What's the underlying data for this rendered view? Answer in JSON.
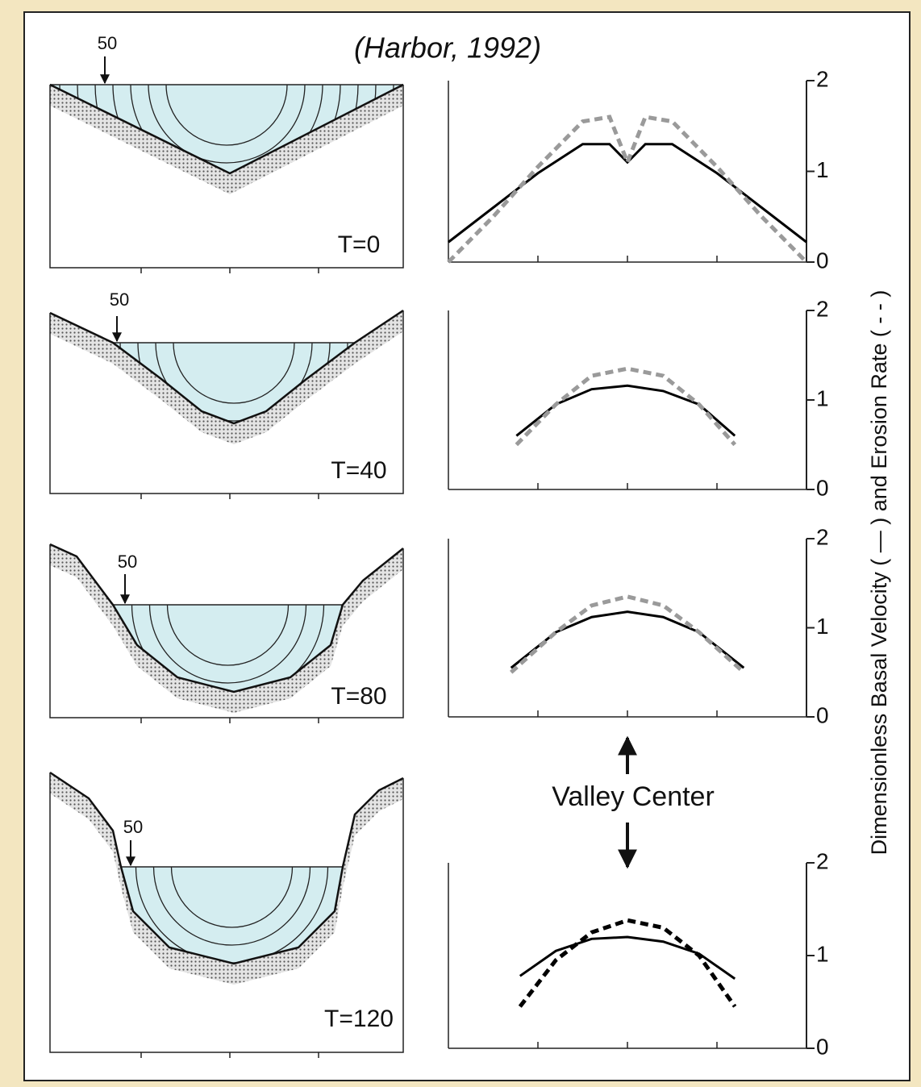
{
  "title": "(Harbor, 1992)",
  "y_axis_label": "Dimensionless Basal Velocity ( — ) and Erosion Rate ( - - )",
  "annotation": "Valley Center",
  "cross_sections": [
    {
      "label": "T=0",
      "marker": "50"
    },
    {
      "label": "T=40",
      "marker": "50"
    },
    {
      "label": "T=80",
      "marker": "50"
    },
    {
      "label": "T=120",
      "marker": "50"
    }
  ],
  "chart_data": [
    {
      "type": "line",
      "x": [
        -1,
        -0.75,
        -0.5,
        -0.25,
        -0.1,
        0,
        0.1,
        0.25,
        0.5,
        0.75,
        1
      ],
      "series": [
        {
          "color": "#000000",
          "style": "solid",
          "values": [
            0.22,
            0.6,
            0.98,
            1.3,
            1.3,
            1.1,
            1.3,
            1.3,
            0.98,
            0.6,
            0.22
          ]
        },
        {
          "color": "#9a9a9a",
          "style": "dashed",
          "values": [
            0.0,
            0.5,
            1.05,
            1.55,
            1.6,
            1.1,
            1.6,
            1.55,
            1.05,
            0.5,
            0.0
          ]
        }
      ],
      "xlim": [
        -1,
        1
      ],
      "xticks": [
        -0.5,
        0,
        0.5
      ],
      "ylim": [
        0,
        2
      ],
      "yticks": [
        0,
        1,
        2
      ]
    },
    {
      "type": "line",
      "x": [
        -0.62,
        -0.4,
        -0.2,
        0,
        0.2,
        0.4,
        0.6
      ],
      "series": [
        {
          "color": "#000000",
          "style": "solid",
          "values": [
            0.6,
            0.95,
            1.12,
            1.16,
            1.1,
            0.95,
            0.6
          ]
        },
        {
          "color": "#9a9a9a",
          "style": "dashed",
          "values": [
            0.5,
            0.95,
            1.27,
            1.35,
            1.27,
            0.95,
            0.5
          ]
        }
      ],
      "xlim": [
        -1,
        1
      ],
      "xticks": [
        -0.5,
        0,
        0.5
      ],
      "ylim": [
        0,
        2
      ],
      "yticks": [
        0,
        1,
        2
      ]
    },
    {
      "type": "line",
      "x": [
        -0.65,
        -0.4,
        -0.2,
        0,
        0.2,
        0.4,
        0.65
      ],
      "series": [
        {
          "color": "#000000",
          "style": "solid",
          "values": [
            0.55,
            0.95,
            1.12,
            1.18,
            1.12,
            0.95,
            0.55
          ]
        },
        {
          "color": "#9a9a9a",
          "style": "dashed",
          "values": [
            0.5,
            0.95,
            1.25,
            1.35,
            1.25,
            0.95,
            0.5
          ]
        }
      ],
      "xlim": [
        -1,
        1
      ],
      "xticks": [
        -0.5,
        0,
        0.5
      ],
      "ylim": [
        0,
        2
      ],
      "yticks": [
        0,
        1,
        2
      ]
    },
    {
      "type": "line",
      "x": [
        -0.6,
        -0.4,
        -0.2,
        0,
        0.2,
        0.4,
        0.6
      ],
      "series": [
        {
          "color": "#000000",
          "style": "solid",
          "values": [
            0.78,
            1.05,
            1.18,
            1.2,
            1.15,
            1.02,
            0.75
          ]
        },
        {
          "color": "#000000",
          "style": "dashed",
          "values": [
            0.45,
            0.95,
            1.25,
            1.38,
            1.3,
            1.0,
            0.45
          ]
        }
      ],
      "xlim": [
        -1,
        1
      ],
      "xticks": [
        -0.5,
        0,
        0.5
      ],
      "ylim": [
        0,
        2
      ],
      "yticks": [
        0,
        1,
        2
      ]
    }
  ]
}
